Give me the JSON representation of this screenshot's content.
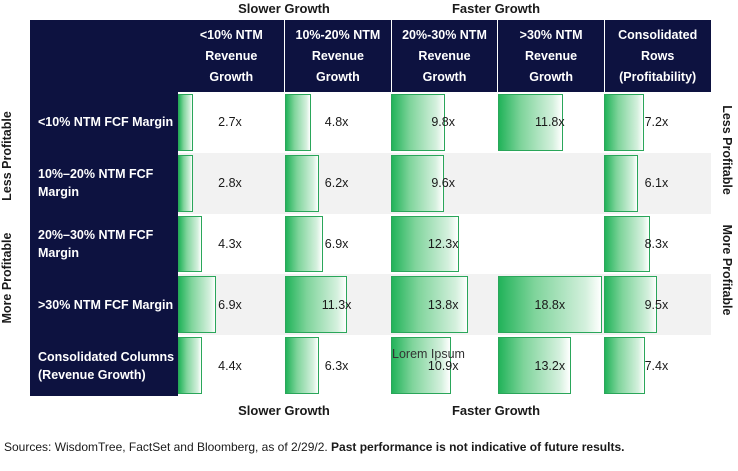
{
  "top_labels": {
    "slower": "Slower Growth",
    "faster": "Faster Growth"
  },
  "bottom_labels": {
    "slower": "Slower Growth",
    "faster": "Faster Growth"
  },
  "side_labels": {
    "left_top": "Less Profitable",
    "left_bottom": "More Profitable",
    "right_top": "Less Profitable",
    "right_bottom": "More Profitable"
  },
  "chart_data": {
    "type": "table",
    "unit": "x",
    "columns": [
      "<10% NTM\nRevenue\nGrowth",
      "10%-20% NTM\nRevenue\nGrowth",
      "20%-30% NTM\nRevenue\nGrowth",
      ">30% NTM\nRevenue\nGrowth",
      "Consolidated\nRows\n(Profitability)"
    ],
    "rows": [
      {
        "label": "<10% NTM FCF Margin",
        "values": [
          2.7,
          4.8,
          9.8,
          11.8,
          7.2
        ],
        "labels": [
          "2.7x",
          "4.8x",
          "9.8x",
          "11.8x",
          "7.2x"
        ]
      },
      {
        "label": "10%–20%  NTM FCF\nMargin",
        "values": [
          2.8,
          6.2,
          9.6,
          null,
          6.1
        ],
        "labels": [
          "2.8x",
          "6.2x",
          "9.6x",
          "",
          "6.1x"
        ]
      },
      {
        "label": "20%–30%  NTM FCF\nMargin",
        "values": [
          4.3,
          6.9,
          12.3,
          null,
          8.3
        ],
        "labels": [
          "4.3x",
          "6.9x",
          "12.3x",
          "",
          "8.3x"
        ]
      },
      {
        "label": ">30% NTM FCF Margin",
        "values": [
          6.9,
          11.3,
          13.8,
          18.8,
          9.5
        ],
        "labels": [
          "6.9x",
          "11.3x",
          "13.8x",
          "18.8x",
          "9.5x"
        ]
      },
      {
        "label": "Consolidated Columns\n(Revenue Growth)",
        "values": [
          4.4,
          6.3,
          10.9,
          13.2,
          7.4
        ],
        "labels": [
          "4.4x",
          "6.3x",
          "10.9x",
          "13.2x",
          "7.4x"
        ]
      }
    ],
    "max_value": 18.8
  },
  "annotation": "Lorem Ipsum",
  "footer": {
    "source": "Sources: WisdomTree, FactSet and Bloomberg, as of 2/29/2. ",
    "disclaimer": "Past performance is not indicative of future results."
  },
  "colors": {
    "header_bg": "#0d1240",
    "bar_green": "#22b35a",
    "alt_row": "#f2f2f2"
  }
}
